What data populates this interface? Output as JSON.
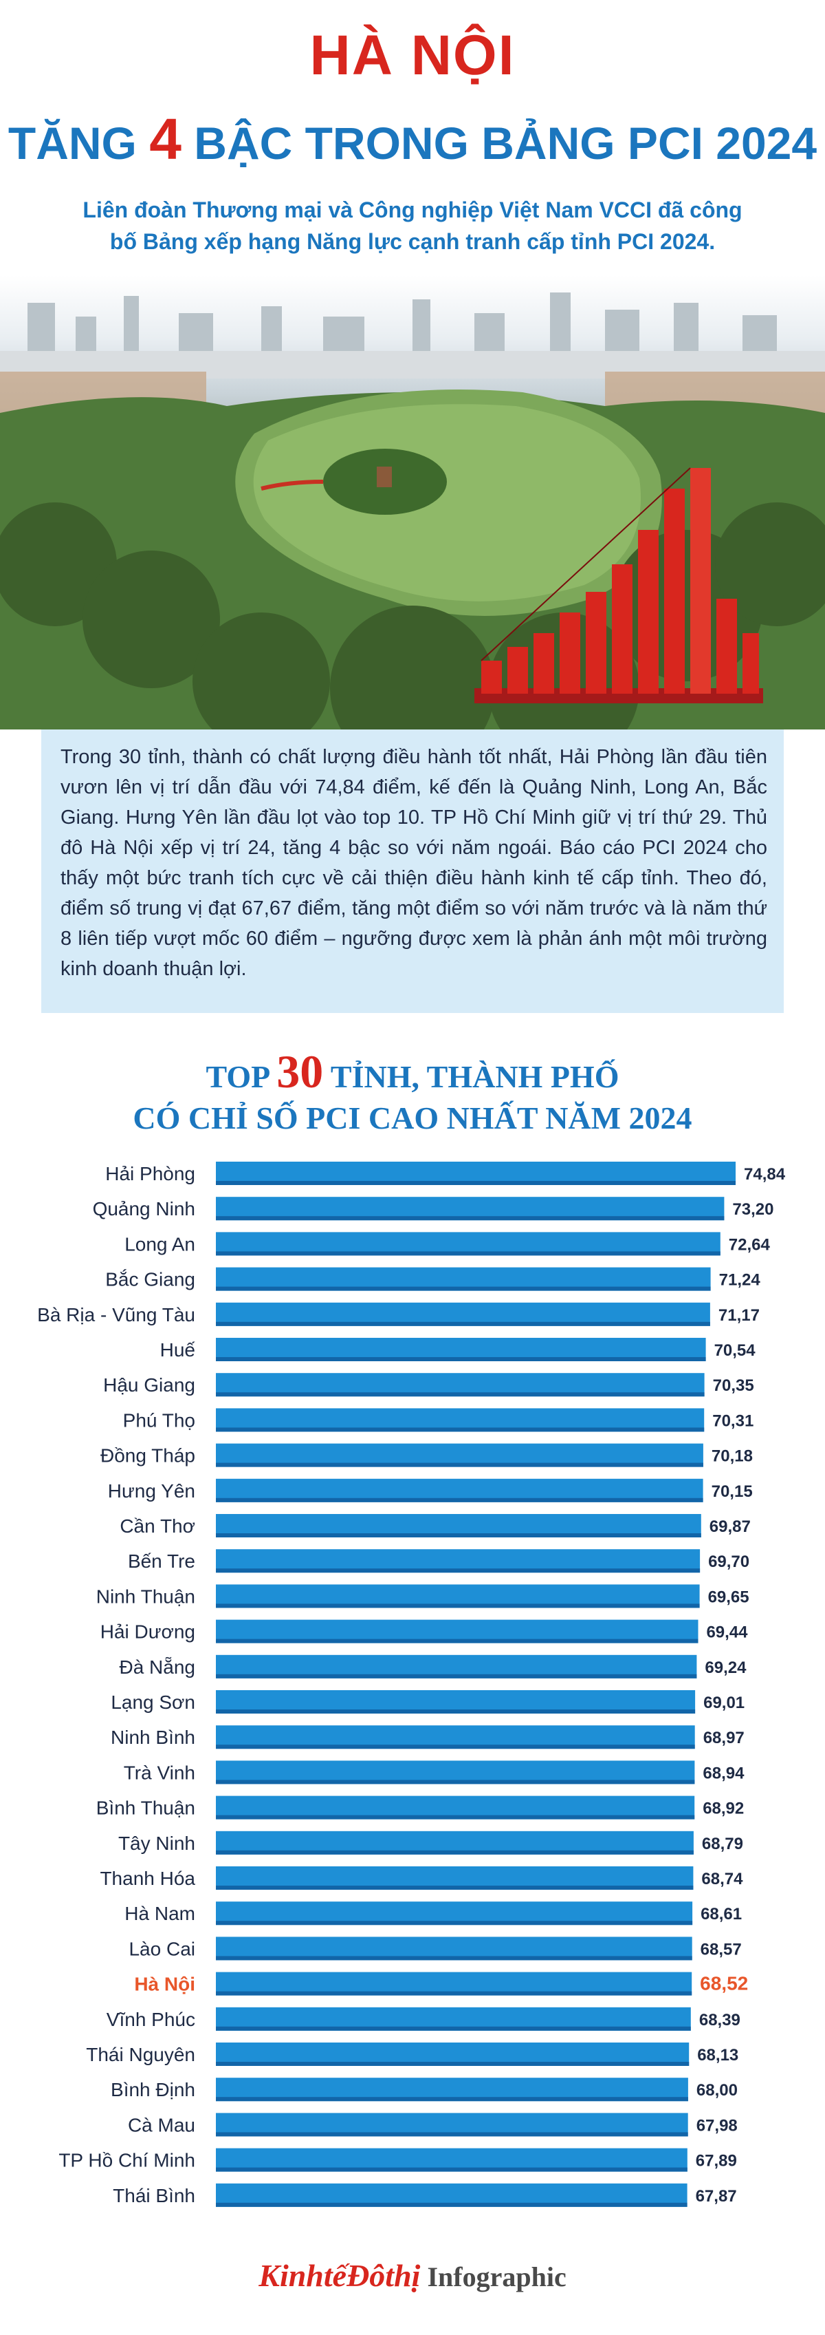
{
  "header": {
    "title_line1": "HÀ NỘI",
    "title_line2_pre": "TĂNG ",
    "title_line2_num": "4",
    "title_line2_post": " BẬC TRONG BẢNG PCI 2024",
    "subtitle": "Liên đoàn Thương mại và Công nghiệp Việt Nam VCCI đã công bố Bảng xếp hạng Năng lực cạnh tranh cấp tỉnh PCI 2024."
  },
  "infobox": {
    "text": "Trong 30 tỉnh, thành có chất lượng điều hành tốt nhất, Hải Phòng lần đầu tiên vươn lên vị trí dẫn đầu với 74,84 điểm, kế đến là Quảng Ninh, Long An, Bắc Giang. Hưng Yên lần đầu lọt vào top 10. TP Hồ Chí Minh giữ vị trí thứ 29. Thủ đô Hà Nội xếp vị trí 24, tăng 4 bậc so với năm ngoái. Báo cáo PCI 2024 cho thấy một bức tranh tích cực về cải thiện điều hành kinh tế cấp tỉnh. Theo đó, điểm số trung vị đạt 67,67 điểm, tăng một điểm so với năm trước và là năm thứ 8 liên tiếp vượt mốc 60 điểm – ngưỡng được xem là phản ánh một môi trường kinh doanh thuận lợi."
  },
  "chart_title": {
    "line1_pre": "TOP ",
    "line1_num": "30",
    "line1_post": " TỈNH, THÀNH PHỐ",
    "line2": "CÓ CHỈ SỐ PCI CAO NHẤT NĂM 2024"
  },
  "colors": {
    "bar": "#1e8fd6",
    "bar_dark": "#1265a8",
    "highlight": "#e8562a",
    "label": "#1e2a44",
    "title_red": "#d8261e",
    "title_blue": "#1b76be"
  },
  "chart_data": {
    "type": "bar",
    "orientation": "horizontal",
    "categories": [
      "Hải Phòng",
      "Quảng Ninh",
      "Long An",
      "Bắc Giang",
      "Bà Rịa - Vũng Tàu",
      "Huế",
      "Hậu Giang",
      "Phú Thọ",
      "Đồng Tháp",
      "Hưng Yên",
      "Cần Thơ",
      "Bến Tre",
      "Ninh Thuận",
      "Hải Dương",
      "Đà Nẵng",
      "Lạng Sơn",
      "Ninh Bình",
      "Trà Vinh",
      "Bình Thuận",
      "Tây Ninh",
      "Thanh Hóa",
      "Hà Nam",
      "Lào Cai",
      "Hà Nội",
      "Vĩnh Phúc",
      "Thái Nguyên",
      "Bình Định",
      "Cà Mau",
      "TP Hồ Chí Minh",
      "Thái Bình"
    ],
    "values": [
      74.84,
      73.2,
      72.64,
      71.24,
      71.17,
      70.54,
      70.35,
      70.31,
      70.18,
      70.15,
      69.87,
      69.7,
      69.65,
      69.44,
      69.24,
      69.01,
      68.97,
      68.94,
      68.92,
      68.79,
      68.74,
      68.61,
      68.57,
      68.52,
      68.39,
      68.13,
      68.0,
      67.98,
      67.89,
      67.87
    ],
    "value_labels": [
      "74,84",
      "73,20",
      "72,64",
      "71,24",
      "71,17",
      "70,54",
      "70,35",
      "70,31",
      "70,18",
      "70,15",
      "69,87",
      "69,70",
      "69,65",
      "69,44",
      "69,24",
      "69,01",
      "68,97",
      "68,94",
      "68,92",
      "68,79",
      "68,74",
      "68,61",
      "68,57",
      "68,52",
      "68,39",
      "68,13",
      "68,00",
      "67,98",
      "67,89",
      "67,87"
    ],
    "highlight": "Hà Nội"
  },
  "footer": {
    "logo_text": "KinhtếĐôthị",
    "logo_suffix": "Infographic"
  }
}
